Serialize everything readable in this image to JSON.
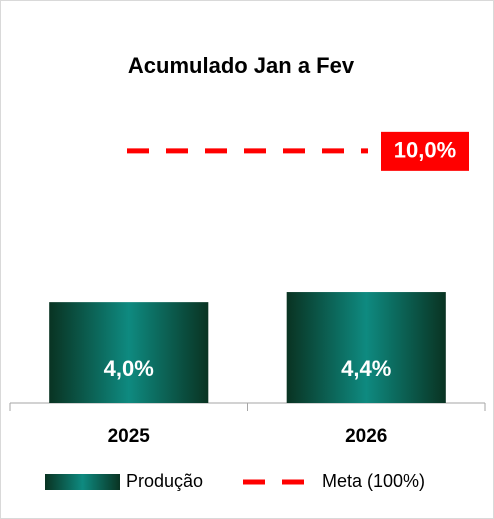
{
  "chart_data": {
    "type": "bar",
    "title": "Acumulado Jan a Fev",
    "categories": [
      "2025",
      "2026"
    ],
    "series": [
      {
        "name": "Produção",
        "color": "#0e8a80",
        "values": [
          4.0,
          4.4
        ],
        "value_labels": [
          "4,0%",
          "4,4%"
        ]
      }
    ],
    "target": {
      "name": "Meta (100%)",
      "value": 10.0,
      "label": "10,0%",
      "color": "#ff0000"
    },
    "ylim": [
      0,
      14
    ],
    "legend": "bottom"
  }
}
